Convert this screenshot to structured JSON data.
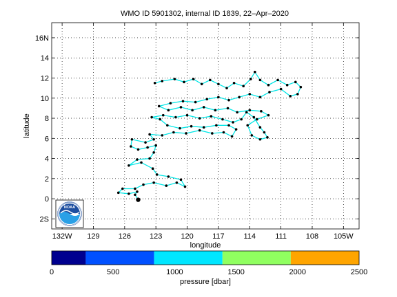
{
  "chart_data": [
    {
      "type": "scatter",
      "title": "WMO ID 5901302, internal ID 1839, 22–Apr–2020",
      "xlabel": "longitude",
      "ylabel": "latitude",
      "xlim": [
        -133,
        -103.5
      ],
      "ylim": [
        -3,
        17.5
      ],
      "grid": true,
      "x_ticks": [
        {
          "value": -132,
          "label": "132W"
        },
        {
          "value": -129,
          "label": "129"
        },
        {
          "value": -126,
          "label": "126"
        },
        {
          "value": -123,
          "label": "123"
        },
        {
          "value": -120,
          "label": "120"
        },
        {
          "value": -117,
          "label": "117"
        },
        {
          "value": -114,
          "label": "114"
        },
        {
          "value": -111,
          "label": "111"
        },
        {
          "value": -108,
          "label": "108"
        },
        {
          "value": -105,
          "label": "105W"
        }
      ],
      "y_ticks": [
        {
          "value": -2,
          "label": "2S"
        },
        {
          "value": 0,
          "label": "0"
        },
        {
          "value": 2,
          "label": "2"
        },
        {
          "value": 4,
          "label": "4"
        },
        {
          "value": 6,
          "label": "6"
        },
        {
          "value": 8,
          "label": "8"
        },
        {
          "value": 10,
          "label": "10"
        },
        {
          "value": 12,
          "label": "12"
        },
        {
          "value": 14,
          "label": "14"
        },
        {
          "value": 16,
          "label": "16N"
        }
      ],
      "track_color": "#00e6e6",
      "point_color": "#000000",
      "start_marker_color": "#000000",
      "track": [
        [
          -124.7,
          -0.1
        ],
        [
          -125.0,
          0.4
        ],
        [
          -124.8,
          0.7
        ],
        [
          -125.6,
          0.5
        ],
        [
          -126.6,
          0.6
        ],
        [
          -126.2,
          1.0
        ],
        [
          -125.0,
          1.0
        ],
        [
          -124.2,
          1.4
        ],
        [
          -123.2,
          1.6
        ],
        [
          -122.0,
          1.3
        ],
        [
          -121.0,
          1.6
        ],
        [
          -120.2,
          1.2
        ],
        [
          -120.6,
          1.9
        ],
        [
          -121.8,
          2.2
        ],
        [
          -122.9,
          2.4
        ],
        [
          -123.3,
          3.0
        ],
        [
          -124.4,
          3.6
        ],
        [
          -125.6,
          3.3
        ],
        [
          -124.8,
          3.9
        ],
        [
          -123.6,
          4.0
        ],
        [
          -123.2,
          4.6
        ],
        [
          -123.0,
          5.3
        ],
        [
          -123.8,
          5.1
        ],
        [
          -124.7,
          4.9
        ],
        [
          -125.4,
          5.2
        ],
        [
          -125.3,
          5.9
        ],
        [
          -124.0,
          5.6
        ],
        [
          -123.2,
          5.9
        ],
        [
          -123.6,
          6.4
        ],
        [
          -122.4,
          6.3
        ],
        [
          -121.3,
          6.6
        ],
        [
          -120.1,
          6.5
        ],
        [
          -118.8,
          6.8
        ],
        [
          -117.6,
          6.5
        ],
        [
          -116.5,
          6.6
        ],
        [
          -115.7,
          6.2
        ],
        [
          -115.3,
          6.9
        ],
        [
          -116.0,
          7.3
        ],
        [
          -117.2,
          7.3
        ],
        [
          -118.4,
          7.1
        ],
        [
          -119.6,
          7.2
        ],
        [
          -120.7,
          7.0
        ],
        [
          -121.9,
          7.3
        ],
        [
          -122.6,
          7.9
        ],
        [
          -123.4,
          8.1
        ],
        [
          -122.3,
          8.3
        ],
        [
          -121.1,
          8.1
        ],
        [
          -120.0,
          8.3
        ],
        [
          -118.8,
          8.0
        ],
        [
          -117.7,
          8.2
        ],
        [
          -116.6,
          7.9
        ],
        [
          -115.6,
          7.6
        ],
        [
          -114.8,
          7.9
        ],
        [
          -114.3,
          8.6
        ],
        [
          -113.6,
          8.1
        ],
        [
          -113.0,
          7.1
        ],
        [
          -112.6,
          6.6
        ],
        [
          -112.3,
          6.1
        ],
        [
          -113.0,
          5.9
        ],
        [
          -113.8,
          6.3
        ],
        [
          -114.2,
          7.3
        ],
        [
          -113.3,
          7.9
        ],
        [
          -112.2,
          8.3
        ],
        [
          -112.9,
          8.7
        ],
        [
          -114.0,
          8.8
        ],
        [
          -115.2,
          8.6
        ],
        [
          -116.1,
          9.0
        ],
        [
          -117.3,
          8.8
        ],
        [
          -118.4,
          9.1
        ],
        [
          -119.5,
          8.8
        ],
        [
          -120.6,
          9.1
        ],
        [
          -121.8,
          8.8
        ],
        [
          -122.7,
          9.2
        ],
        [
          -121.6,
          9.5
        ],
        [
          -120.4,
          9.7
        ],
        [
          -119.2,
          9.6
        ],
        [
          -118.1,
          9.9
        ],
        [
          -117.0,
          10.1
        ],
        [
          -116.0,
          9.8
        ],
        [
          -115.0,
          10.1
        ],
        [
          -114.0,
          10.4
        ],
        [
          -113.0,
          10.1
        ],
        [
          -112.1,
          10.6
        ],
        [
          -111.0,
          10.9
        ],
        [
          -110.1,
          10.2
        ],
        [
          -109.4,
          10.4
        ],
        [
          -109.1,
          11.1
        ],
        [
          -109.6,
          11.6
        ],
        [
          -110.4,
          11.3
        ],
        [
          -111.3,
          11.8
        ],
        [
          -112.2,
          11.3
        ],
        [
          -113.0,
          11.8
        ],
        [
          -113.5,
          12.6
        ],
        [
          -113.9,
          11.9
        ],
        [
          -114.6,
          11.2
        ],
        [
          -115.5,
          11.5
        ],
        [
          -116.2,
          11.0
        ],
        [
          -117.0,
          11.4
        ],
        [
          -117.8,
          11.8
        ],
        [
          -118.6,
          11.4
        ],
        [
          -119.4,
          11.9
        ],
        [
          -120.3,
          11.6
        ],
        [
          -121.2,
          11.9
        ],
        [
          -122.4,
          11.7
        ],
        [
          -123.1,
          11.5
        ]
      ],
      "start_point": [
        -124.7,
        -0.1
      ],
      "colorbar": {
        "label": "pressure [dbar]",
        "ticks": [
          0,
          500,
          1000,
          1500,
          2000,
          2500
        ],
        "range": [
          0,
          2500
        ],
        "bins": [
          {
            "from": 0,
            "to": 277,
            "color": "#00008f"
          },
          {
            "from": 277,
            "to": 833,
            "color": "#0050ff"
          },
          {
            "from": 833,
            "to": 1389,
            "color": "#00e6ff"
          },
          {
            "from": 1389,
            "to": 1944,
            "color": "#90ff60"
          },
          {
            "from": 1944,
            "to": 2500,
            "color": "#ffa500"
          }
        ]
      }
    }
  ],
  "logo": {
    "text": "NOAA",
    "outer_color": "#1e4fa0",
    "inner_color": "#2aa0e6"
  }
}
